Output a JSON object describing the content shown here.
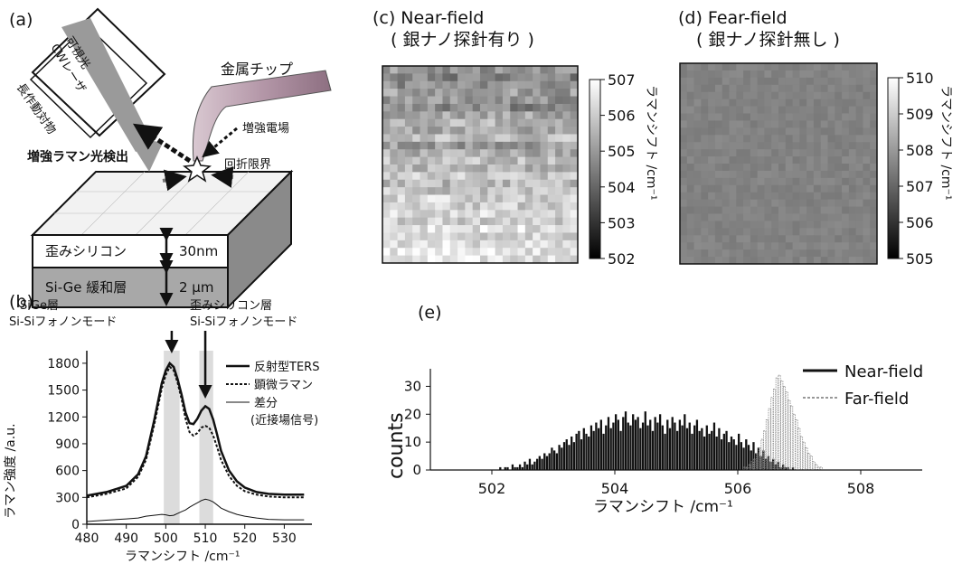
{
  "panel_a": {
    "label": "(a)",
    "laser_label_1": "可視光",
    "laser_label_2": "CWレーザ",
    "objective_label": "長作動対物",
    "tip_label": "金属チップ",
    "field_label": "増強電場",
    "detect_label": "増強ラマン光検出",
    "diffraction_label": "回折限界",
    "layer_top": "歪みシリコン",
    "layer_top_thickness": "30nm",
    "layer_bottom": "Si-Ge 緩和層",
    "layer_bottom_thickness": "2 μm"
  },
  "panel_b": {
    "label": "(b)",
    "ann_left_1": "SiGe層",
    "ann_left_2": "Si-Siフォノンモード",
    "ann_right_1": "歪みシリコン層",
    "ann_right_2": "Si-Siフォノンモード",
    "legend": [
      "反射型TERS",
      "顕微ラマン",
      "差分",
      "(近接場信号)"
    ]
  },
  "panel_c": {
    "label": "(c) Near-field",
    "sublabel": "( 銀ナノ探針有り )",
    "colorbar_label": "ラマンシフト /cm⁻¹",
    "colorbar_ticks": [
      "507",
      "506",
      "505",
      "504",
      "503",
      "502"
    ],
    "range": [
      502,
      507
    ]
  },
  "panel_d": {
    "label": "(d) Fear-field",
    "sublabel": "( 銀ナノ探針無し )",
    "colorbar_label": "ラマンシフト /cm⁻¹",
    "colorbar_ticks": [
      "510",
      "509",
      "508",
      "507",
      "506",
      "505"
    ],
    "range": [
      505,
      510
    ]
  },
  "panel_e": {
    "label": "(e)",
    "legend": [
      "Near-field",
      "Far-field"
    ]
  },
  "chart_data": [
    {
      "type": "line",
      "panel": "b",
      "xlabel": "ラマンシフト /cm⁻¹",
      "ylabel": "ラマン強度 /a.u.",
      "xlim": [
        480,
        537
      ],
      "ylim": [
        0,
        1900
      ],
      "xticks": [
        480,
        490,
        500,
        510,
        520,
        530
      ],
      "yticks": [
        0,
        300,
        600,
        900,
        1200,
        1500,
        1800
      ],
      "highlight_bands": [
        [
          499.5,
          503.5
        ],
        [
          508.5,
          512
        ]
      ],
      "arrows_at": [
        501.5,
        510
      ],
      "x": [
        480,
        485,
        490,
        493,
        495,
        497,
        499,
        500,
        501,
        502,
        503,
        504,
        505,
        506,
        507,
        508,
        509,
        510,
        511,
        512,
        513,
        514,
        516,
        518,
        520,
        523,
        526,
        530,
        535
      ],
      "series": [
        {
          "name": "反射型TERS",
          "style": "solid-bold",
          "values": [
            320,
            360,
            430,
            560,
            760,
            1150,
            1580,
            1720,
            1800,
            1760,
            1620,
            1450,
            1250,
            1130,
            1120,
            1180,
            1270,
            1320,
            1290,
            1170,
            1000,
            820,
            600,
            480,
            410,
            360,
            340,
            330,
            330
          ]
        },
        {
          "name": "顕微ラマン",
          "style": "dashed",
          "values": [
            300,
            340,
            400,
            530,
            720,
            1100,
            1520,
            1670,
            1760,
            1720,
            1580,
            1400,
            1180,
            1030,
            990,
            1020,
            1080,
            1100,
            1080,
            990,
            860,
            720,
            540,
            430,
            370,
            330,
            310,
            300,
            300
          ]
        },
        {
          "name": "差分",
          "style": "thin",
          "values": [
            30,
            45,
            60,
            70,
            90,
            100,
            110,
            105,
            95,
            100,
            120,
            140,
            160,
            190,
            215,
            240,
            265,
            280,
            270,
            250,
            215,
            180,
            140,
            110,
            90,
            70,
            55,
            50,
            50
          ]
        }
      ]
    },
    {
      "type": "bar",
      "panel": "e",
      "xlabel": "ラマンシフト /cm⁻¹",
      "ylabel": "counts",
      "xlim": [
        501,
        509
      ],
      "ylim": [
        0,
        35
      ],
      "xticks": [
        502,
        504,
        506,
        508
      ],
      "yticks": [
        0,
        10,
        20,
        30
      ],
      "bin_width": 0.04,
      "series": [
        {
          "name": "Near-field",
          "style": "solid",
          "start": 502.0,
          "values": [
            0,
            0,
            0,
            1,
            0,
            1,
            1,
            0,
            2,
            1,
            1,
            2,
            1,
            3,
            2,
            4,
            2,
            3,
            4,
            5,
            4,
            6,
            5,
            6,
            8,
            7,
            6,
            9,
            8,
            10,
            11,
            9,
            12,
            10,
            13,
            14,
            11,
            15,
            13,
            12,
            16,
            14,
            17,
            15,
            18,
            13,
            16,
            19,
            15,
            17,
            20,
            18,
            14,
            19,
            21,
            17,
            16,
            20,
            18,
            19,
            15,
            17,
            21,
            16,
            18,
            14,
            19,
            17,
            20,
            16,
            13,
            18,
            15,
            19,
            17,
            14,
            18,
            16,
            20,
            15,
            17,
            13,
            16,
            18,
            14,
            15,
            12,
            16,
            13,
            14,
            17,
            12,
            15,
            11,
            13,
            14,
            10,
            12,
            11,
            9,
            13,
            10,
            8,
            11,
            9,
            7,
            10,
            6,
            8,
            5,
            7,
            4,
            5,
            3,
            4,
            2,
            3,
            1,
            2,
            1,
            1,
            0,
            1
          ]
        },
        {
          "name": "Far-field",
          "style": "dotted",
          "start": 506.1,
          "values": [
            1,
            1,
            2,
            3,
            4,
            6,
            8,
            11,
            14,
            18,
            22,
            26,
            29,
            33,
            34,
            32,
            30,
            28,
            25,
            23,
            20,
            18,
            15,
            12,
            10,
            8,
            6,
            5,
            3,
            2,
            1,
            1
          ]
        }
      ]
    },
    {
      "type": "heatmap",
      "panel": "c",
      "colorbar_range": [
        502,
        507
      ],
      "grid": [
        26,
        26
      ],
      "row_means": [
        505.0,
        504.6,
        504.8,
        505.2,
        505.0,
        504.7,
        505.4,
        505.7,
        505.3,
        505.9,
        505.1,
        505.5,
        505.8,
        505.6,
        506.0,
        505.7,
        505.9,
        506.2,
        506.1,
        506.3,
        506.1,
        506.5,
        506.2,
        506.4,
        506.6,
        506.5
      ]
    },
    {
      "type": "heatmap",
      "panel": "d",
      "colorbar_range": [
        505,
        510
      ],
      "grid": [
        28,
        28
      ],
      "mean": 507.55
    }
  ]
}
